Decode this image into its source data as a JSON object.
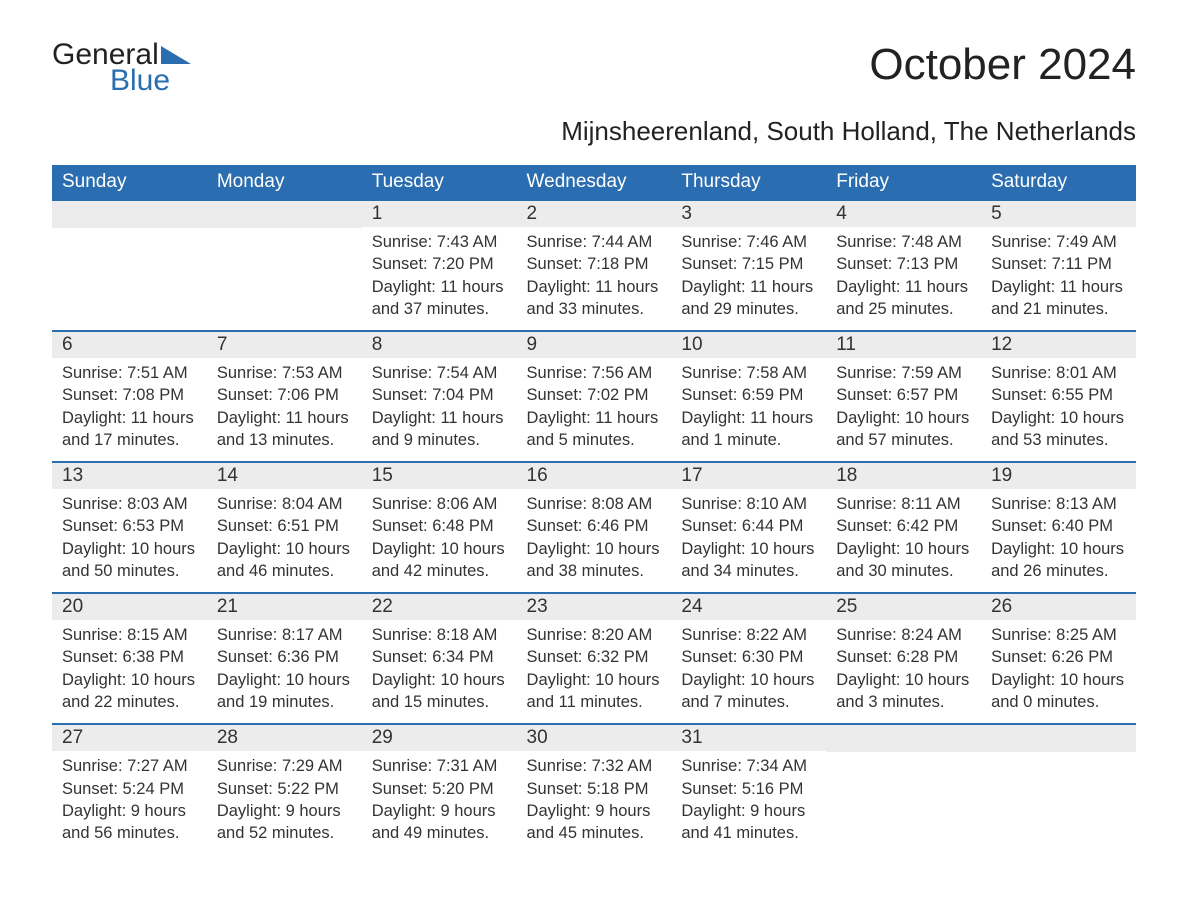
{
  "brand": {
    "line1": "General",
    "line2": "Blue",
    "color_primary": "#2a6db0",
    "color_text": "#222222"
  },
  "title": "October 2024",
  "subtitle": "Mijnsheerenland, South Holland, The Netherlands",
  "styling": {
    "header_bg": "#2a6db0",
    "header_text_color": "#ffffff",
    "daynum_bg": "#ececec",
    "row_divider_color": "#2a6db0",
    "body_bg": "#ffffff",
    "font_family": "Arial",
    "title_fontsize_pt": 33,
    "subtitle_fontsize_pt": 20,
    "th_fontsize_pt": 14,
    "cell_fontsize_pt": 12
  },
  "calendar": {
    "type": "table",
    "columns": [
      "Sunday",
      "Monday",
      "Tuesday",
      "Wednesday",
      "Thursday",
      "Friday",
      "Saturday"
    ],
    "weeks": [
      [
        null,
        null,
        {
          "day": "1",
          "sunrise": "Sunrise: 7:43 AM",
          "sunset": "Sunset: 7:20 PM",
          "daylight1": "Daylight: 11 hours",
          "daylight2": "and 37 minutes."
        },
        {
          "day": "2",
          "sunrise": "Sunrise: 7:44 AM",
          "sunset": "Sunset: 7:18 PM",
          "daylight1": "Daylight: 11 hours",
          "daylight2": "and 33 minutes."
        },
        {
          "day": "3",
          "sunrise": "Sunrise: 7:46 AM",
          "sunset": "Sunset: 7:15 PM",
          "daylight1": "Daylight: 11 hours",
          "daylight2": "and 29 minutes."
        },
        {
          "day": "4",
          "sunrise": "Sunrise: 7:48 AM",
          "sunset": "Sunset: 7:13 PM",
          "daylight1": "Daylight: 11 hours",
          "daylight2": "and 25 minutes."
        },
        {
          "day": "5",
          "sunrise": "Sunrise: 7:49 AM",
          "sunset": "Sunset: 7:11 PM",
          "daylight1": "Daylight: 11 hours",
          "daylight2": "and 21 minutes."
        }
      ],
      [
        {
          "day": "6",
          "sunrise": "Sunrise: 7:51 AM",
          "sunset": "Sunset: 7:08 PM",
          "daylight1": "Daylight: 11 hours",
          "daylight2": "and 17 minutes."
        },
        {
          "day": "7",
          "sunrise": "Sunrise: 7:53 AM",
          "sunset": "Sunset: 7:06 PM",
          "daylight1": "Daylight: 11 hours",
          "daylight2": "and 13 minutes."
        },
        {
          "day": "8",
          "sunrise": "Sunrise: 7:54 AM",
          "sunset": "Sunset: 7:04 PM",
          "daylight1": "Daylight: 11 hours",
          "daylight2": "and 9 minutes."
        },
        {
          "day": "9",
          "sunrise": "Sunrise: 7:56 AM",
          "sunset": "Sunset: 7:02 PM",
          "daylight1": "Daylight: 11 hours",
          "daylight2": "and 5 minutes."
        },
        {
          "day": "10",
          "sunrise": "Sunrise: 7:58 AM",
          "sunset": "Sunset: 6:59 PM",
          "daylight1": "Daylight: 11 hours",
          "daylight2": "and 1 minute."
        },
        {
          "day": "11",
          "sunrise": "Sunrise: 7:59 AM",
          "sunset": "Sunset: 6:57 PM",
          "daylight1": "Daylight: 10 hours",
          "daylight2": "and 57 minutes."
        },
        {
          "day": "12",
          "sunrise": "Sunrise: 8:01 AM",
          "sunset": "Sunset: 6:55 PM",
          "daylight1": "Daylight: 10 hours",
          "daylight2": "and 53 minutes."
        }
      ],
      [
        {
          "day": "13",
          "sunrise": "Sunrise: 8:03 AM",
          "sunset": "Sunset: 6:53 PM",
          "daylight1": "Daylight: 10 hours",
          "daylight2": "and 50 minutes."
        },
        {
          "day": "14",
          "sunrise": "Sunrise: 8:04 AM",
          "sunset": "Sunset: 6:51 PM",
          "daylight1": "Daylight: 10 hours",
          "daylight2": "and 46 minutes."
        },
        {
          "day": "15",
          "sunrise": "Sunrise: 8:06 AM",
          "sunset": "Sunset: 6:48 PM",
          "daylight1": "Daylight: 10 hours",
          "daylight2": "and 42 minutes."
        },
        {
          "day": "16",
          "sunrise": "Sunrise: 8:08 AM",
          "sunset": "Sunset: 6:46 PM",
          "daylight1": "Daylight: 10 hours",
          "daylight2": "and 38 minutes."
        },
        {
          "day": "17",
          "sunrise": "Sunrise: 8:10 AM",
          "sunset": "Sunset: 6:44 PM",
          "daylight1": "Daylight: 10 hours",
          "daylight2": "and 34 minutes."
        },
        {
          "day": "18",
          "sunrise": "Sunrise: 8:11 AM",
          "sunset": "Sunset: 6:42 PM",
          "daylight1": "Daylight: 10 hours",
          "daylight2": "and 30 minutes."
        },
        {
          "day": "19",
          "sunrise": "Sunrise: 8:13 AM",
          "sunset": "Sunset: 6:40 PM",
          "daylight1": "Daylight: 10 hours",
          "daylight2": "and 26 minutes."
        }
      ],
      [
        {
          "day": "20",
          "sunrise": "Sunrise: 8:15 AM",
          "sunset": "Sunset: 6:38 PM",
          "daylight1": "Daylight: 10 hours",
          "daylight2": "and 22 minutes."
        },
        {
          "day": "21",
          "sunrise": "Sunrise: 8:17 AM",
          "sunset": "Sunset: 6:36 PM",
          "daylight1": "Daylight: 10 hours",
          "daylight2": "and 19 minutes."
        },
        {
          "day": "22",
          "sunrise": "Sunrise: 8:18 AM",
          "sunset": "Sunset: 6:34 PM",
          "daylight1": "Daylight: 10 hours",
          "daylight2": "and 15 minutes."
        },
        {
          "day": "23",
          "sunrise": "Sunrise: 8:20 AM",
          "sunset": "Sunset: 6:32 PM",
          "daylight1": "Daylight: 10 hours",
          "daylight2": "and 11 minutes."
        },
        {
          "day": "24",
          "sunrise": "Sunrise: 8:22 AM",
          "sunset": "Sunset: 6:30 PM",
          "daylight1": "Daylight: 10 hours",
          "daylight2": "and 7 minutes."
        },
        {
          "day": "25",
          "sunrise": "Sunrise: 8:24 AM",
          "sunset": "Sunset: 6:28 PM",
          "daylight1": "Daylight: 10 hours",
          "daylight2": "and 3 minutes."
        },
        {
          "day": "26",
          "sunrise": "Sunrise: 8:25 AM",
          "sunset": "Sunset: 6:26 PM",
          "daylight1": "Daylight: 10 hours",
          "daylight2": "and 0 minutes."
        }
      ],
      [
        {
          "day": "27",
          "sunrise": "Sunrise: 7:27 AM",
          "sunset": "Sunset: 5:24 PM",
          "daylight1": "Daylight: 9 hours",
          "daylight2": "and 56 minutes."
        },
        {
          "day": "28",
          "sunrise": "Sunrise: 7:29 AM",
          "sunset": "Sunset: 5:22 PM",
          "daylight1": "Daylight: 9 hours",
          "daylight2": "and 52 minutes."
        },
        {
          "day": "29",
          "sunrise": "Sunrise: 7:31 AM",
          "sunset": "Sunset: 5:20 PM",
          "daylight1": "Daylight: 9 hours",
          "daylight2": "and 49 minutes."
        },
        {
          "day": "30",
          "sunrise": "Sunrise: 7:32 AM",
          "sunset": "Sunset: 5:18 PM",
          "daylight1": "Daylight: 9 hours",
          "daylight2": "and 45 minutes."
        },
        {
          "day": "31",
          "sunrise": "Sunrise: 7:34 AM",
          "sunset": "Sunset: 5:16 PM",
          "daylight1": "Daylight: 9 hours",
          "daylight2": "and 41 minutes."
        },
        null,
        null
      ]
    ]
  }
}
